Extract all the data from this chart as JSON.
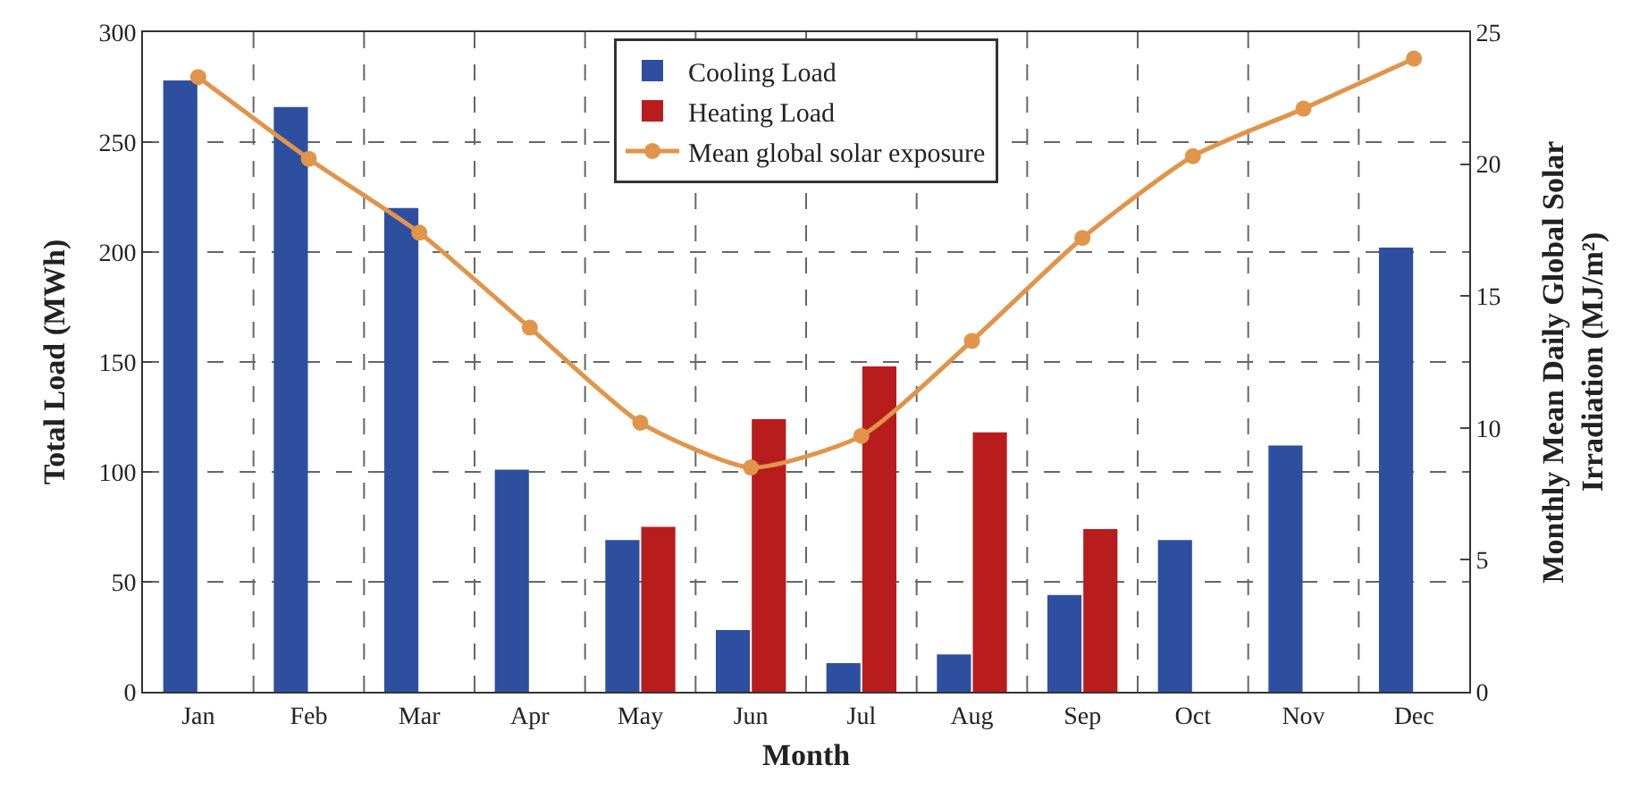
{
  "chart_data": {
    "type": "bar",
    "xlabel": "Month",
    "ylabel": "Total Load (MWh)",
    "y2label": "Monthly Mean Daily Global Solar\nIrradiation (MJ/m²)",
    "categories": [
      "Jan",
      "Feb",
      "Mar",
      "Apr",
      "May",
      "Jun",
      "Jul",
      "Aug",
      "Sep",
      "Oct",
      "Nov",
      "Dec"
    ],
    "series": [
      {
        "name": "Cooling Load",
        "color": "#2e4fa0",
        "values": [
          278,
          266,
          220,
          101,
          69,
          28,
          13,
          17,
          44,
          69,
          112,
          202
        ]
      },
      {
        "name": "Heating Load",
        "color": "#b81c1c",
        "values": [
          null,
          null,
          null,
          null,
          75,
          124,
          148,
          118,
          74,
          null,
          null,
          null
        ]
      },
      {
        "name": "Mean global solar exposure",
        "type": "line",
        "axis": "y2",
        "color": "#e0954a",
        "marker": "circle",
        "values": [
          23.3,
          20.2,
          17.4,
          13.8,
          10.2,
          8.5,
          9.7,
          13.3,
          17.2,
          20.3,
          22.1,
          24.0
        ]
      }
    ],
    "ylim": [
      0,
      300
    ],
    "yticks": [
      0,
      50,
      100,
      150,
      200,
      250,
      300
    ],
    "y2lim": [
      0,
      25
    ],
    "y2ticks": [
      0,
      5,
      10,
      15,
      20,
      25
    ],
    "grid": true,
    "legend": "top"
  }
}
